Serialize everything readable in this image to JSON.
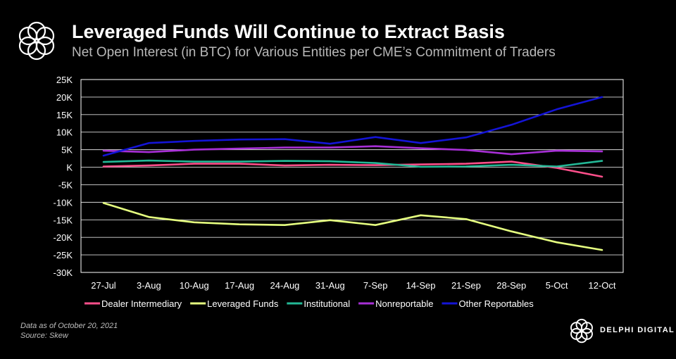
{
  "header": {
    "title": "Leveraged Funds Will Continue to Extract Basis",
    "subtitle": "Net Open Interest (in BTC) for Various Entities per CME’s Commitment of Traders"
  },
  "chart_data": {
    "type": "line",
    "title": "Leveraged Funds Will Continue to Extract Basis",
    "subtitle": "Net Open Interest (in BTC) for Various Entities per CME’s Commitment of Traders",
    "xlabel": "",
    "ylabel": "",
    "categories": [
      "27-Jul",
      "3-Aug",
      "10-Aug",
      "17-Aug",
      "24-Aug",
      "31-Aug",
      "7-Sep",
      "14-Sep",
      "21-Sep",
      "28-Sep",
      "5-Oct",
      "12-Oct"
    ],
    "ylim": [
      -30000,
      25000
    ],
    "yticks": [
      25000,
      20000,
      15000,
      10000,
      5000,
      0,
      -5000,
      -10000,
      -15000,
      -20000,
      -25000,
      -30000
    ],
    "ytick_labels": [
      "25K",
      "20K",
      "15K",
      "10K",
      "5K",
      "K",
      "-5K",
      "-10K",
      "-15K",
      "-20K",
      "-25K",
      "-30K"
    ],
    "grid": true,
    "legend_position": "bottom",
    "series": [
      {
        "name": "Dealer Intermediary",
        "color": "#ff4f8b",
        "values": [
          200,
          500,
          1000,
          1000,
          500,
          700,
          600,
          800,
          1000,
          1600,
          -200,
          -2700
        ]
      },
      {
        "name": "Leveraged Funds",
        "color": "#e6ff80",
        "values": [
          -10200,
          -14200,
          -15700,
          -16300,
          -16500,
          -15100,
          -16500,
          -13700,
          -14800,
          -18300,
          -21400,
          -23600
        ]
      },
      {
        "name": "Institutional",
        "color": "#23b896",
        "values": [
          1500,
          1900,
          1600,
          1600,
          1800,
          1700,
          1200,
          100,
          200,
          700,
          200,
          1800
        ]
      },
      {
        "name": "Nonreportable",
        "color": "#a72fd6",
        "values": [
          4700,
          4300,
          5000,
          5300,
          5600,
          5600,
          6000,
          5400,
          4900,
          3700,
          4700,
          4500
        ]
      },
      {
        "name": "Other Reportables",
        "color": "#1414d6",
        "values": [
          3300,
          6900,
          7500,
          7900,
          8000,
          6700,
          8600,
          6900,
          8500,
          12100,
          16500,
          20000
        ]
      }
    ]
  },
  "footer": {
    "note_line1": "Data as of October 20, 2021",
    "note_line2": "Source: Skew",
    "brand": "DELPHI DIGITAL"
  }
}
